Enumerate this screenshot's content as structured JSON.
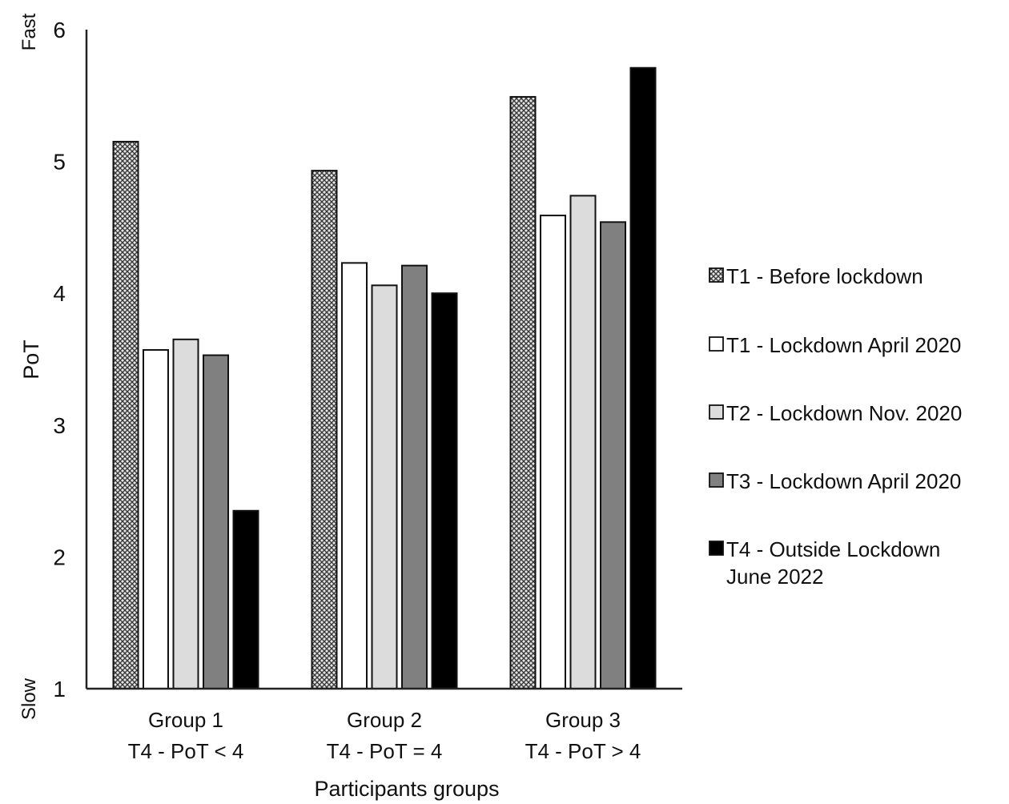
{
  "chart_data": {
    "type": "bar",
    "xlabel": "Participants groups",
    "ylabel": "PoT",
    "y_end_labels": {
      "top": "Fast",
      "bottom": "Slow"
    },
    "ylim": [
      1,
      6
    ],
    "yticks": [
      1,
      2,
      3,
      4,
      5,
      6
    ],
    "grid": false,
    "legend_position": "right",
    "categories": [
      {
        "line1": "Group 1",
        "line2": "T4 - PoT < 4"
      },
      {
        "line1": "Group 2",
        "line2": "T4 - PoT = 4"
      },
      {
        "line1": "Group 3",
        "line2": "T4 - PoT > 4"
      }
    ],
    "series": [
      {
        "name": "T1 - Before lockdown",
        "values": [
          5.15,
          4.93,
          5.49
        ],
        "pattern": "crosshatch",
        "color": "#3a3a3a"
      },
      {
        "name": "T1 - Lockdown April 2020",
        "values": [
          3.57,
          4.23,
          4.59
        ],
        "pattern": "solid",
        "color": "#ffffff"
      },
      {
        "name": "T2 - Lockdown Nov. 2020",
        "values": [
          3.65,
          4.06,
          4.74
        ],
        "pattern": "solid",
        "color": "#dcdcdc"
      },
      {
        "name": "T3 - Lockdown April 2020",
        "values": [
          3.53,
          4.21,
          4.54
        ],
        "pattern": "solid",
        "color": "#808080"
      },
      {
        "name": "T4 - Outside Lockdown June 2022",
        "legend_lines": [
          "T4 - Outside Lockdown",
          "June 2022"
        ],
        "values": [
          2.35,
          4.0,
          5.71
        ],
        "pattern": "solid",
        "color": "#000000"
      }
    ]
  }
}
